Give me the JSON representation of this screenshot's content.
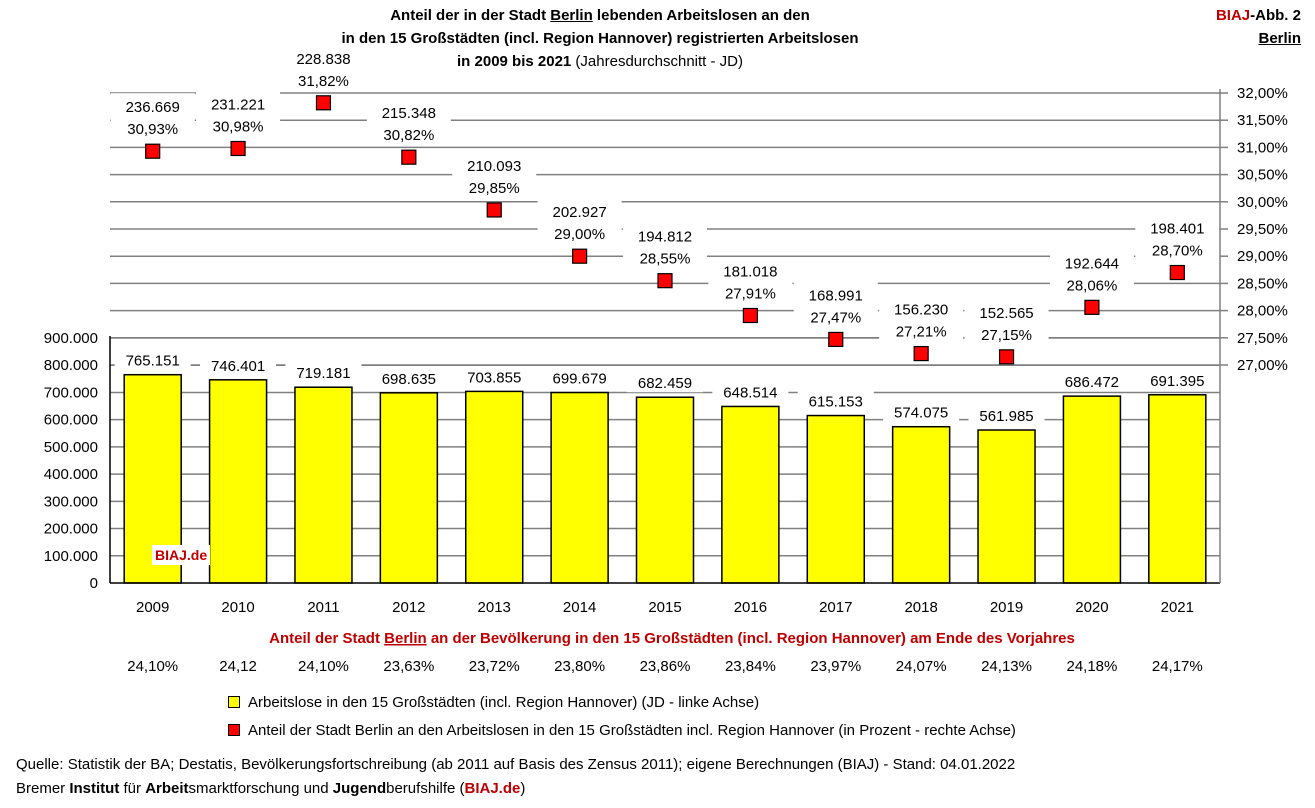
{
  "title": {
    "line1_pre": "Anteil der in der Stadt ",
    "line1_city": "Berlin",
    "line1_post": " lebenden Arbeitslosen an den",
    "line2": "in den 15 Großstädten (incl. Region Hannover) registrierten Arbeitslosen",
    "line3_bold": "in 2009 bis 2021",
    "line3_normal": " (Jahresdurchschnitt - JD)"
  },
  "badge": {
    "biaj": "BIAJ",
    "abb": "-Abb. 2",
    "city": "Berlin"
  },
  "watermark": "BIAJ.de",
  "chart_data": {
    "type": "bar",
    "categories": [
      "2009",
      "2010",
      "2011",
      "2012",
      "2013",
      "2014",
      "2015",
      "2016",
      "2017",
      "2018",
      "2019",
      "2020",
      "2021"
    ],
    "series": [
      {
        "name": "Arbeitslose in den 15 Großstädten (incl. Region Hannover) (JD - linke Achse)",
        "axis": "left",
        "type": "bar",
        "color": "#ffff00",
        "values": [
          765151,
          746401,
          719181,
          698635,
          703855,
          699679,
          682459,
          648514,
          615153,
          574075,
          561985,
          686472,
          691395
        ],
        "labels": [
          "765.151",
          "746.401",
          "719.181",
          "698.635",
          "703.855",
          "699.679",
          "682.459",
          "648.514",
          "615.153",
          "574.075",
          "561.985",
          "686.472",
          "691.395"
        ]
      },
      {
        "name": "Anteil der Stadt Berlin an den Arbeitslosen in den 15 Großstädten incl. Region Hannover (in Prozent - rechte Achse)",
        "axis": "right",
        "type": "scatter",
        "color": "#ff0000",
        "values": [
          30.93,
          30.98,
          31.82,
          30.82,
          29.85,
          29.0,
          28.55,
          27.91,
          27.47,
          27.21,
          27.15,
          28.06,
          28.7
        ],
        "labels_count": [
          "236.669",
          "231.221",
          "228.838",
          "215.348",
          "210.093",
          "202.927",
          "194.812",
          "181.018",
          "168.991",
          "156.230",
          "152.565",
          "192.644",
          "198.401"
        ],
        "labels_pct": [
          "30,93%",
          "30,98%",
          "31,82%",
          "30,82%",
          "29,85%",
          "29,00%",
          "28,55%",
          "27,91%",
          "27,47%",
          "27,21%",
          "27,15%",
          "28,06%",
          "28,70%"
        ]
      }
    ],
    "left_axis": {
      "ylim": [
        0,
        900000
      ],
      "ticks": [
        0,
        100000,
        200000,
        300000,
        400000,
        500000,
        600000,
        700000,
        800000,
        900000
      ],
      "tick_labels": [
        "0",
        "100.000",
        "200.000",
        "300.000",
        "400.000",
        "500.000",
        "600.000",
        "700.000",
        "800.000",
        "900.000"
      ]
    },
    "right_axis": {
      "ylim": [
        27.0,
        32.0
      ],
      "ticks": [
        27.0,
        27.5,
        28.0,
        28.5,
        29.0,
        29.5,
        30.0,
        30.5,
        31.0,
        31.5,
        32.0
      ],
      "tick_labels": [
        "27,00%",
        "27,50%",
        "28,00%",
        "28,50%",
        "29,00%",
        "29,50%",
        "30,00%",
        "30,50%",
        "31,00%",
        "31,50%",
        "32,00%"
      ]
    },
    "population_share": {
      "title_pre": "Anteil der Stadt ",
      "title_city": "Berlin",
      "title_post": " an der Bevölkerung in den 15 Großstädten (incl. Region Hannover) am Ende des Vorjahres",
      "values": [
        "24,10%",
        "24,12",
        "24,10%",
        "23,63%",
        "23,72%",
        "23,80%",
        "23,86%",
        "23,84%",
        "23,97%",
        "24,07%",
        "24,13%",
        "24,18%",
        "24,17%"
      ]
    },
    "grid": true
  },
  "legend": {
    "bar": "Arbeitslose in den 15 Großstädten (incl. Region Hannover) (JD - linke Achse)",
    "marker": "Anteil der Stadt Berlin an den Arbeitslosen in den 15 Großstädten incl. Region Hannover (in Prozent - rechte Achse)"
  },
  "source": {
    "line1": "Quelle: Statistik der BA; Destatis, Bevölkerungsfortschreibung (ab 2011 auf Basis des Zensus 2011); eigene Berechnungen (BIAJ) - Stand: 04.01.2022",
    "l2_a": "Bremer ",
    "l2_b": "Institut",
    "l2_c": " für ",
    "l2_d": "Arbeit",
    "l2_e": "smarktforschung und ",
    "l2_f": "Jugend",
    "l2_g": "berufshilfe (",
    "l2_h": "BIAJ.de",
    "l2_i": ")"
  }
}
